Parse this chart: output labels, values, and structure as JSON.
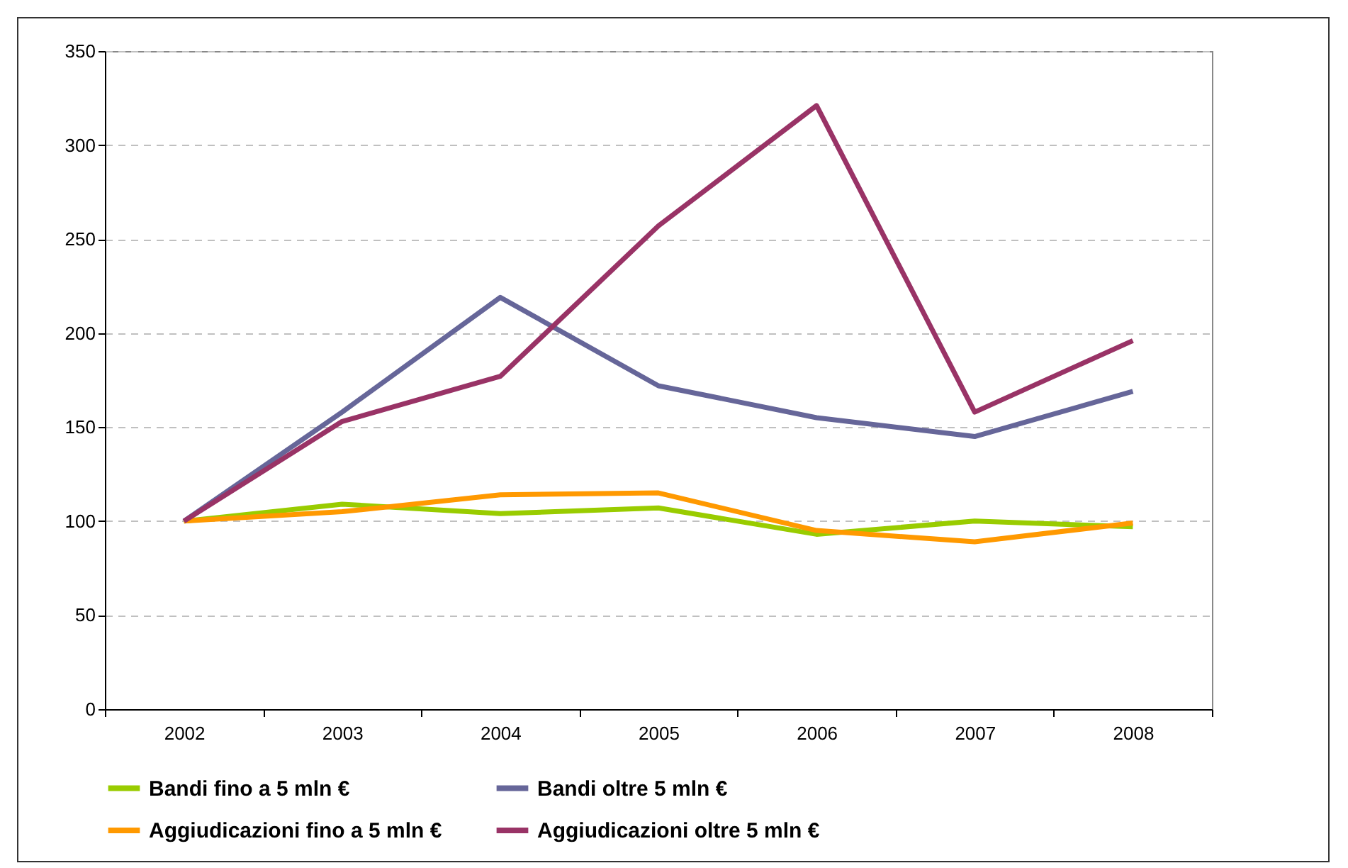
{
  "chart_data": {
    "type": "line",
    "categories": [
      "2002",
      "2003",
      "2004",
      "2005",
      "2006",
      "2007",
      "2008"
    ],
    "ylim": [
      0,
      350
    ],
    "yticks": [
      0,
      50,
      100,
      150,
      200,
      250,
      300,
      350
    ],
    "grid": "y",
    "legend": "bottom",
    "line_style": "solid",
    "marker": "none",
    "series": [
      {
        "name": "Bandi fino a 5 mln €",
        "color": "#99cc00",
        "values": [
          100,
          109,
          104,
          107,
          93,
          100,
          97
        ]
      },
      {
        "name": "Bandi oltre 5 mln €",
        "color": "#666699",
        "values": [
          100,
          158,
          219,
          172,
          155,
          145,
          169
        ]
      },
      {
        "name": "Aggiudicazioni fino a 5 mln €",
        "color": "#ff9900",
        "values": [
          100,
          105,
          114,
          115,
          95,
          89,
          99
        ]
      },
      {
        "name": "Aggiudicazioni oltre 5 mln €",
        "color": "#993366",
        "values": [
          100,
          153,
          177,
          257,
          321,
          158,
          196
        ]
      }
    ]
  }
}
